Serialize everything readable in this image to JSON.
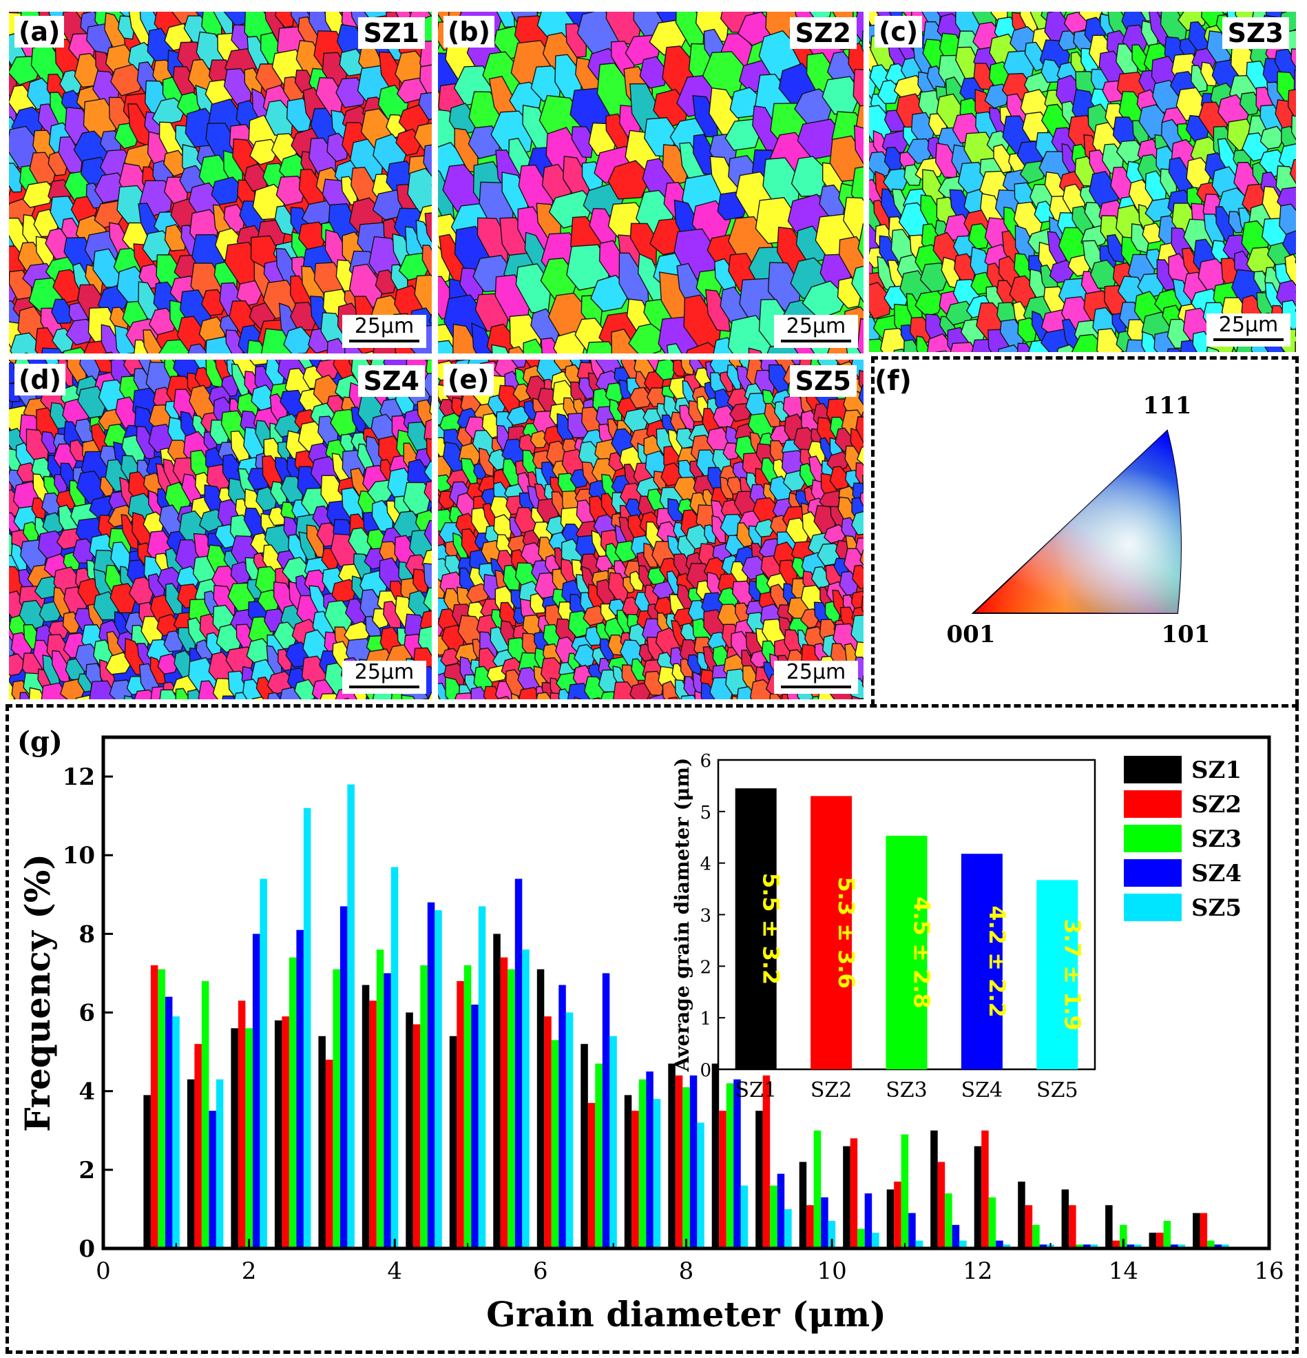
{
  "panels": [
    {
      "tag": "(a)",
      "label": "SZ1",
      "scale": "25μm",
      "colors": [
        "#ff2020",
        "#e02050",
        "#ff6030",
        "#2040ff",
        "#20ff40",
        "#30d0ff",
        "#ff40c0",
        "#a040ff",
        "#ffff30",
        "#ff9020",
        "#6060ff",
        "#40e0e0"
      ]
    },
    {
      "tag": "(b)",
      "label": "SZ2",
      "scale": "25μm",
      "colors": [
        "#30ff30",
        "#ff2020",
        "#2030ff",
        "#30e0ff",
        "#ff30d0",
        "#a030ff",
        "#ffff30",
        "#ff8020",
        "#40ffb0",
        "#ff3080",
        "#6070ff",
        "#20c0c0"
      ]
    },
    {
      "tag": "(c)",
      "label": "SZ3",
      "scale": "25μm",
      "colors": [
        "#20ff20",
        "#30e060",
        "#2040ff",
        "#30d0ff",
        "#ff40d0",
        "#9030ff",
        "#ff3030",
        "#60ff90",
        "#40a0ff",
        "#ffff40",
        "#30ffff",
        "#a0ff30"
      ]
    },
    {
      "tag": "(d)",
      "label": "SZ4",
      "scale": "25μm",
      "colors": [
        "#2030ff",
        "#30ff30",
        "#ff30d0",
        "#ff2020",
        "#30e0ff",
        "#9030ff",
        "#ffff30",
        "#ff8020",
        "#6070ff",
        "#40ffa0",
        "#ff3080",
        "#20c0c0"
      ]
    },
    {
      "tag": "(e)",
      "label": "SZ5",
      "scale": "25μm",
      "colors": [
        "#ff2020",
        "#e02050",
        "#ff6030",
        "#2040ff",
        "#20ff40",
        "#30d0ff",
        "#ff40c0",
        "#a040ff",
        "#ffff30",
        "#ff9020",
        "#ff3060",
        "#40e0e0"
      ]
    }
  ],
  "ipf": {
    "tag": "(f)",
    "corner_001": "001",
    "corner_101": "101",
    "corner_111": "111"
  },
  "chart_tag": "(g)",
  "chart_data": [
    {
      "type": "bar",
      "xlabel": "Grain diameter (μm)",
      "ylabel": "Frequency (%)",
      "xlim": [
        0,
        16
      ],
      "ylim": [
        0,
        13
      ],
      "xticks": [
        "0",
        "2",
        "4",
        "6",
        "8",
        "10",
        "12",
        "14",
        "16"
      ],
      "yticks": [
        "0",
        "2",
        "4",
        "6",
        "8",
        "10",
        "12"
      ],
      "legend_position": "top-right",
      "x": [
        0.8,
        1.4,
        2.0,
        2.6,
        3.2,
        3.8,
        4.4,
        5.0,
        5.6,
        6.2,
        6.8,
        7.4,
        8.0,
        8.6,
        9.2,
        9.8,
        10.4,
        11.0,
        11.6,
        12.2,
        12.8,
        13.4,
        14.0,
        14.6,
        15.2
      ],
      "series": [
        {
          "name": "SZ1",
          "color": "#000000",
          "values": [
            3.9,
            4.3,
            5.6,
            5.8,
            5.4,
            6.7,
            6.0,
            5.4,
            8.0,
            7.1,
            5.2,
            3.9,
            4.7,
            4.7,
            3.5,
            2.2,
            2.6,
            1.5,
            3.0,
            2.6,
            1.7,
            1.5,
            1.1,
            0.4,
            0.9
          ]
        },
        {
          "name": "SZ2",
          "color": "#ff0000",
          "values": [
            7.2,
            5.2,
            6.3,
            5.9,
            4.8,
            6.3,
            5.7,
            6.8,
            7.4,
            5.9,
            3.7,
            3.5,
            4.4,
            3.5,
            4.4,
            1.1,
            2.8,
            1.7,
            2.2,
            3.0,
            1.1,
            1.1,
            0.2,
            0.4,
            0.9
          ]
        },
        {
          "name": "SZ3",
          "color": "#00ff00",
          "values": [
            7.1,
            6.8,
            5.6,
            7.4,
            7.1,
            7.6,
            7.2,
            7.2,
            7.1,
            5.3,
            4.7,
            4.3,
            4.1,
            4.2,
            1.6,
            3.0,
            0.5,
            2.9,
            1.4,
            1.3,
            0.6,
            0.1,
            0.6,
            0.7,
            0.2
          ]
        },
        {
          "name": "SZ4",
          "color": "#0000ff",
          "values": [
            6.4,
            3.5,
            8.0,
            8.1,
            8.7,
            7.0,
            8.8,
            6.2,
            9.4,
            6.7,
            7.0,
            4.5,
            4.4,
            4.3,
            1.9,
            1.3,
            1.4,
            0.9,
            0.6,
            0.2,
            0.1,
            0.1,
            0.1,
            0.1,
            0.1
          ]
        },
        {
          "name": "SZ5",
          "color": "#00e5ff",
          "values": [
            5.9,
            4.3,
            9.4,
            11.2,
            11.8,
            9.7,
            8.6,
            8.7,
            7.6,
            6.0,
            5.4,
            3.8,
            3.2,
            1.6,
            1.0,
            0.7,
            0.4,
            0.2,
            0.2,
            0.1,
            0.1,
            0.1,
            0.1,
            0.1,
            0.1
          ]
        }
      ]
    },
    {
      "type": "bar",
      "ylabel": "Average grain diameter (μm)",
      "ylim": [
        0,
        6
      ],
      "yticks": [
        "0",
        "1",
        "2",
        "3",
        "4",
        "5",
        "6"
      ],
      "categories": [
        "SZ1",
        "SZ2",
        "SZ3",
        "SZ4",
        "SZ5"
      ],
      "values": [
        5.45,
        5.3,
        4.53,
        4.18,
        3.67
      ],
      "data_labels": [
        "5.5 ± 3.2",
        "5.3 ± 3.6",
        "4.5 ± 2.8",
        "4.2 ± 2.2",
        "3.7 ± 1.9"
      ],
      "colors": [
        "#000000",
        "#ff0000",
        "#00ff00",
        "#0000ff",
        "#00ffff"
      ],
      "label_color": "#ffff00"
    }
  ]
}
